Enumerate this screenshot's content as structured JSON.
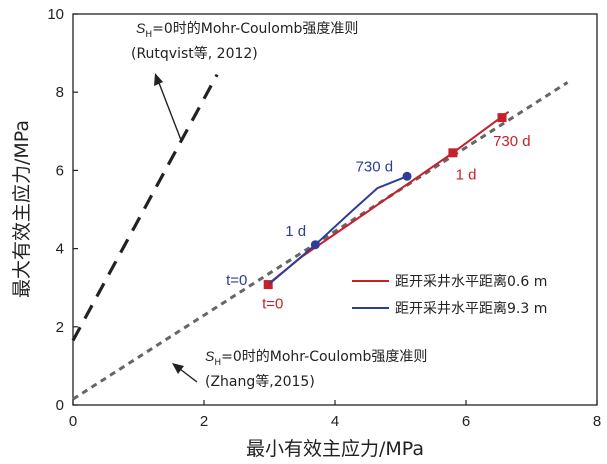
{
  "chart_data": {
    "type": "line",
    "xlabel": "最小有效主应力/MPa",
    "ylabel": "最大有效主应力/MPa",
    "xlim": [
      0,
      8
    ],
    "ylim": [
      0,
      10
    ],
    "x_ticks": [
      "0",
      "2",
      "4",
      "6",
      "8"
    ],
    "y_ticks": [
      "0",
      "2",
      "4",
      "6",
      "8",
      "10"
    ],
    "grid": false,
    "legend_position": "center-right",
    "reference_lines": [
      {
        "style": "long-dash",
        "color": "#222222",
        "points": [
          [
            0,
            1.65
          ],
          [
            2.2,
            8.45
          ]
        ],
        "annotation": {
          "line1_sub": "H",
          "line1_rest": "=0时的Mohr-Coulomb强度准则",
          "line2": "(Rutqvist等, 2012)"
        }
      },
      {
        "style": "short-dash",
        "color": "#666666",
        "points": [
          [
            0,
            0.15
          ],
          [
            7.55,
            8.25
          ]
        ],
        "annotation": {
          "line1_sub": "H",
          "line1_rest": "=0时的Mohr-Coulomb强度准则",
          "line2": "(Zhang等,2015)"
        }
      }
    ],
    "series": [
      {
        "name": "距开采井水平距离0.6 m",
        "color": "#c8202a",
        "x": [
          2.95,
          3.5,
          4.5,
          5.8,
          6.65
        ],
        "y": [
          3.05,
          3.8,
          4.95,
          6.45,
          7.5
        ],
        "markers": [
          [
            2.98,
            3.08
          ],
          [
            5.8,
            6.45
          ],
          [
            6.55,
            7.35
          ]
        ],
        "labels": [
          {
            "text": "t=0",
            "x": 3.05,
            "y": 2.6
          },
          {
            "text": "1 d",
            "x": 6.0,
            "y": 5.9
          },
          {
            "text": "730 d",
            "x": 6.7,
            "y": 6.75
          }
        ]
      },
      {
        "name": "距开采井水平距离9.3 m",
        "color": "#2e3d96",
        "x": [
          3.0,
          3.7,
          4.25,
          4.65,
          5.1
        ],
        "y": [
          3.1,
          4.1,
          4.95,
          5.55,
          5.85
        ],
        "markers": [
          [
            3.7,
            4.1
          ],
          [
            5.1,
            5.85
          ]
        ],
        "labels": [
          {
            "text": "t=0",
            "x": 2.5,
            "y": 3.2
          },
          {
            "text": "1 d",
            "x": 3.4,
            "y": 4.45
          },
          {
            "text": "730 d",
            "x": 4.6,
            "y": 6.1
          }
        ]
      }
    ]
  }
}
